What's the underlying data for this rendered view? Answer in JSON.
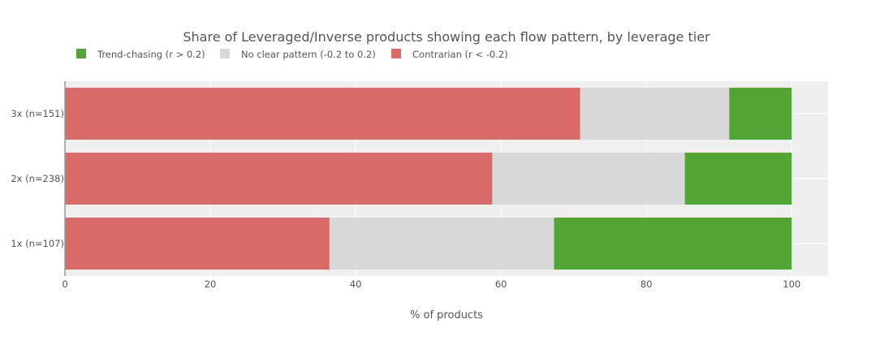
{
  "chart_data": {
    "type": "bar",
    "orientation": "horizontal",
    "stacked": true,
    "title": "Share of Leveraged/Inverse products showing each flow pattern, by leverage tier",
    "xlabel": "% of products",
    "ylabel": "",
    "xlim": [
      0,
      105
    ],
    "xticks": [
      0,
      20,
      40,
      60,
      80,
      100
    ],
    "categories": [
      "3x (n=151)",
      "2x (n=238)",
      "1x (n=107)"
    ],
    "series": [
      {
        "name": "Contrarian (r < -0.2)",
        "color": "#d96b69",
        "values": [
          70.9,
          58.8,
          36.4
        ]
      },
      {
        "name": "No clear pattern (-0.2 to 0.2)",
        "color": "#d8d8d8",
        "values": [
          20.5,
          26.5,
          30.9
        ]
      },
      {
        "name": "Trend-chasing (r > 0.2)",
        "color": "#52a534",
        "values": [
          8.6,
          14.7,
          32.7
        ]
      }
    ],
    "legend": {
      "placement": "top-left",
      "order": [
        "Trend-chasing (r > 0.2)",
        "No clear pattern (-0.2 to 0.2)",
        "Contrarian (r < -0.2)"
      ]
    },
    "grid": true
  },
  "colors": {
    "plot_background": "#efefef",
    "grid": "#ffffff",
    "axis": "#999999",
    "text": "#555555"
  }
}
